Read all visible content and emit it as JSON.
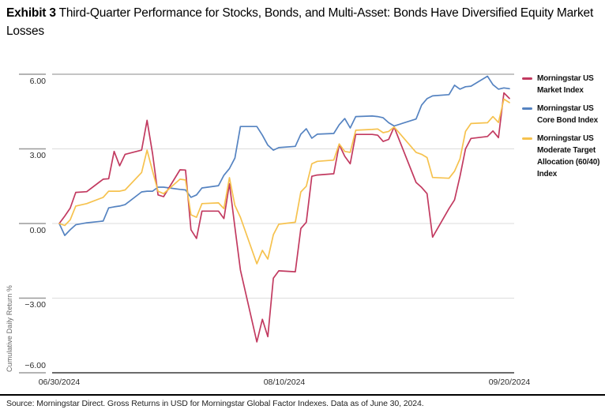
{
  "title": {
    "label": "Exhibit 3",
    "text": " Third-Quarter Performance for Stocks, Bonds, and Multi-Asset: Bonds Have Diversified Equity Market Losses"
  },
  "source_note": "Source: Morningstar Direct. Gross Returns in USD for Morningstar Global Factor Indexes. Data as of June 30, 2024.",
  "y_axis": {
    "title": "Cumulative Daily Return %",
    "tick_values": [
      6,
      3,
      0,
      -3,
      -6
    ],
    "tick_labels": [
      "6.00",
      "3.00",
      "0.00",
      "−3.00",
      "−6.00"
    ]
  },
  "x_axis": {
    "tick_labels": [
      "06/30/2024",
      "08/10/2024",
      "09/20/2024"
    ]
  },
  "legend": {
    "entries": [
      {
        "id": "market",
        "lines": [
          "Morningstar US",
          "Market Index"
        ],
        "color": "#c23a60"
      },
      {
        "id": "core-bond",
        "lines": [
          "Morningstar US",
          "Core Bond Index"
        ],
        "color": "#5583c1"
      },
      {
        "id": "moderate-allocation",
        "lines": [
          "Morningstar US",
          "Moderate Target",
          "Allocation (60/40)",
          "Index"
        ],
        "color": "#f6c24e"
      }
    ]
  },
  "colors": {
    "grid_light": "#dcdcdc",
    "grid_top": "#8a8a8a",
    "axis_bottom": "#3c3c3c",
    "tick_stub": "#9a9a9a"
  },
  "chart_data": {
    "type": "line",
    "title": "Third-Quarter Performance for Stocks, Bonds, and Multi-Asset: Bonds Have Diversified Equity Market Losses",
    "xlabel": "",
    "ylabel": "Cumulative Daily Return %",
    "ylim": [
      -6,
      6
    ],
    "yticks": [
      6,
      3,
      0,
      -3,
      -6
    ],
    "grid": "horizontal",
    "legend_position": "right",
    "x_tick_labels": [
      "06/30/2024",
      "08/10/2024",
      "09/20/2024"
    ],
    "x": [
      "06/30/2024",
      "07/01/2024",
      "07/02/2024",
      "07/03/2024",
      "07/05/2024",
      "07/08/2024",
      "07/09/2024",
      "07/10/2024",
      "07/11/2024",
      "07/12/2024",
      "07/15/2024",
      "07/16/2024",
      "07/17/2024",
      "07/18/2024",
      "07/19/2024",
      "07/22/2024",
      "07/23/2024",
      "07/24/2024",
      "07/25/2024",
      "07/26/2024",
      "07/29/2024",
      "07/30/2024",
      "07/31/2024",
      "08/01/2024",
      "08/02/2024",
      "08/05/2024",
      "08/06/2024",
      "08/07/2024",
      "08/08/2024",
      "08/09/2024",
      "08/12/2024",
      "08/13/2024",
      "08/14/2024",
      "08/15/2024",
      "08/16/2024",
      "08/19/2024",
      "08/20/2024",
      "08/21/2024",
      "08/22/2024",
      "08/23/2024",
      "08/26/2024",
      "08/27/2024",
      "08/28/2024",
      "08/29/2024",
      "08/30/2024",
      "09/03/2024",
      "09/04/2024",
      "09/05/2024",
      "09/06/2024",
      "09/09/2024",
      "09/10/2024",
      "09/11/2024",
      "09/12/2024",
      "09/13/2024",
      "09/16/2024",
      "09/17/2024",
      "09/18/2024",
      "09/19/2024",
      "09/20/2024"
    ],
    "series": [
      {
        "id": "market",
        "name": "Morningstar US Market Index",
        "color": "#c23a60",
        "values": [
          0.0,
          0.3,
          0.62,
          1.25,
          1.28,
          1.78,
          1.8,
          2.9,
          2.32,
          2.78,
          2.95,
          4.15,
          2.8,
          1.15,
          1.08,
          2.16,
          2.15,
          -0.25,
          -0.6,
          0.5,
          0.5,
          0.2,
          1.6,
          -0.15,
          -1.87,
          -4.76,
          -3.85,
          -4.55,
          -2.2,
          -1.9,
          -1.94,
          -0.2,
          0.05,
          1.9,
          1.95,
          2.0,
          3.17,
          2.7,
          2.4,
          3.58,
          3.58,
          3.55,
          3.3,
          3.38,
          3.88,
          1.65,
          1.45,
          1.2,
          -0.55,
          0.6,
          0.95,
          1.9,
          3.0,
          3.42,
          3.5,
          3.72,
          3.45,
          5.25,
          5.03
        ]
      },
      {
        "id": "core-bond",
        "name": "Morningstar US Core Bond Index",
        "color": "#5583c1",
        "values": [
          0.0,
          -0.48,
          -0.25,
          -0.05,
          0.03,
          0.1,
          0.63,
          0.67,
          0.7,
          0.76,
          1.27,
          1.3,
          1.3,
          1.46,
          1.46,
          1.37,
          1.35,
          1.05,
          1.15,
          1.43,
          1.52,
          1.94,
          2.21,
          2.63,
          3.9,
          3.9,
          3.55,
          3.15,
          2.95,
          3.05,
          3.1,
          3.59,
          3.81,
          3.43,
          3.59,
          3.62,
          3.97,
          4.22,
          3.84,
          4.3,
          4.32,
          4.3,
          4.25,
          4.05,
          3.92,
          4.2,
          4.76,
          5.02,
          5.13,
          5.18,
          5.56,
          5.4,
          5.5,
          5.52,
          5.92,
          5.58,
          5.4,
          5.45,
          5.42
        ]
      },
      {
        "id": "moderate-allocation",
        "name": "Morningstar US Moderate Target Allocation (60/40) Index",
        "color": "#f6c24e",
        "values": [
          0.0,
          -0.08,
          0.15,
          0.7,
          0.8,
          1.05,
          1.3,
          1.3,
          1.3,
          1.35,
          2.05,
          2.95,
          2.1,
          1.3,
          1.2,
          1.78,
          1.75,
          0.35,
          0.25,
          0.8,
          0.83,
          0.6,
          1.84,
          0.73,
          0.25,
          -1.62,
          -1.08,
          -1.43,
          -0.45,
          -0.03,
          0.05,
          1.27,
          1.5,
          2.4,
          2.5,
          2.55,
          3.2,
          2.9,
          2.86,
          3.75,
          3.78,
          3.8,
          3.65,
          3.7,
          3.88,
          2.86,
          2.78,
          2.65,
          1.85,
          1.82,
          2.1,
          2.6,
          3.7,
          4.02,
          4.05,
          4.3,
          4.06,
          5.0,
          4.86
        ]
      }
    ]
  }
}
